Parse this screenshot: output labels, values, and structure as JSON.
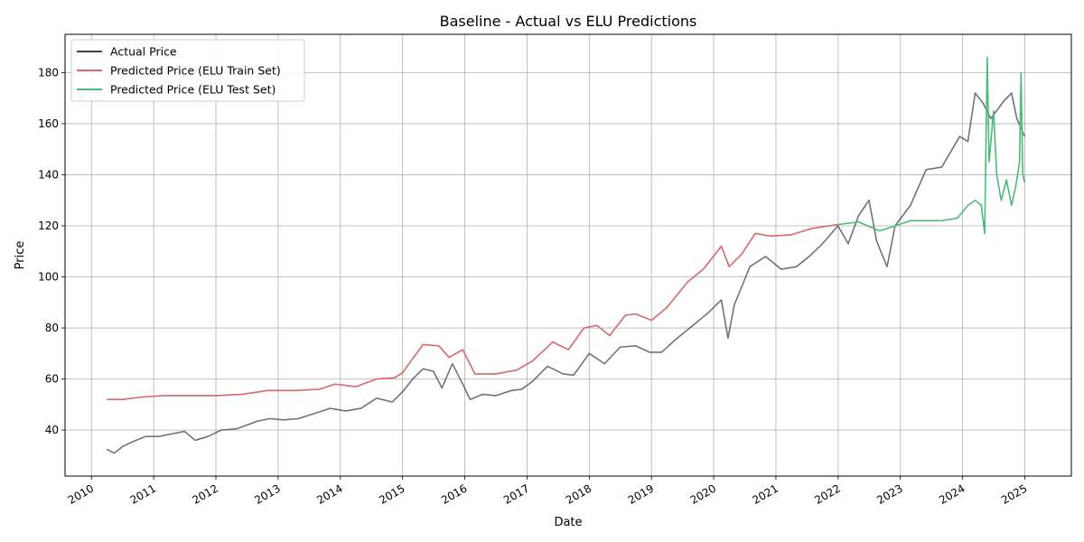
{
  "chart_data": {
    "type": "line",
    "title": "Baseline - Actual vs ELU Predictions",
    "xlabel": "Date",
    "ylabel": "Price",
    "xlim": [
      "2009-07-30",
      "2025-10-01"
    ],
    "ylim": [
      22,
      195
    ],
    "grid": true,
    "legend_position": "top-left",
    "x_ticks": [
      "2010",
      "2011",
      "2012",
      "2013",
      "2014",
      "2015",
      "2016",
      "2017",
      "2018",
      "2019",
      "2020",
      "2021",
      "2022",
      "2023",
      "2024",
      "2025"
    ],
    "y_ticks": [
      40,
      60,
      80,
      100,
      120,
      140,
      160,
      180
    ],
    "series": [
      {
        "name": "Actual Price",
        "color": "#444444",
        "points": [
          [
            "2010-04-01",
            32.5
          ],
          [
            "2010-05-15",
            31.0
          ],
          [
            "2010-07-01",
            33.5
          ],
          [
            "2010-09-01",
            35.5
          ],
          [
            "2010-11-15",
            37.5
          ],
          [
            "2011-02-01",
            37.5
          ],
          [
            "2011-04-15",
            38.5
          ],
          [
            "2011-07-01",
            39.5
          ],
          [
            "2011-09-01",
            36.0
          ],
          [
            "2011-11-15",
            37.5
          ],
          [
            "2012-02-01",
            40.0
          ],
          [
            "2012-05-01",
            40.5
          ],
          [
            "2012-09-01",
            43.5
          ],
          [
            "2012-11-15",
            44.5
          ],
          [
            "2013-02-01",
            44.0
          ],
          [
            "2013-05-01",
            44.5
          ],
          [
            "2013-08-01",
            46.5
          ],
          [
            "2013-11-01",
            48.5
          ],
          [
            "2014-02-01",
            47.5
          ],
          [
            "2014-05-01",
            48.5
          ],
          [
            "2014-08-01",
            52.5
          ],
          [
            "2014-11-01",
            51.0
          ],
          [
            "2015-01-01",
            55.0
          ],
          [
            "2015-03-01",
            60.0
          ],
          [
            "2015-05-01",
            64.0
          ],
          [
            "2015-07-01",
            63.0
          ],
          [
            "2015-08-20",
            56.5
          ],
          [
            "2015-10-20",
            66.0
          ],
          [
            "2015-12-20",
            58.0
          ],
          [
            "2016-02-01",
            52.0
          ],
          [
            "2016-04-15",
            54.0
          ],
          [
            "2016-07-01",
            53.5
          ],
          [
            "2016-10-01",
            55.5
          ],
          [
            "2016-12-01",
            56.0
          ],
          [
            "2017-02-01",
            59.0
          ],
          [
            "2017-05-01",
            65.0
          ],
          [
            "2017-08-01",
            62.0
          ],
          [
            "2017-10-01",
            61.5
          ],
          [
            "2018-01-01",
            70.0
          ],
          [
            "2018-04-01",
            66.0
          ],
          [
            "2018-07-01",
            72.5
          ],
          [
            "2018-10-01",
            73.0
          ],
          [
            "2018-12-20",
            70.5
          ],
          [
            "2019-03-01",
            70.5
          ],
          [
            "2019-06-01",
            76.0
          ],
          [
            "2019-09-01",
            81.0
          ],
          [
            "2019-12-01",
            86.0
          ],
          [
            "2020-02-15",
            91.0
          ],
          [
            "2020-03-25",
            76.0
          ],
          [
            "2020-05-01",
            89.0
          ],
          [
            "2020-08-01",
            104.0
          ],
          [
            "2020-11-01",
            108.0
          ],
          [
            "2021-02-01",
            103.0
          ],
          [
            "2021-05-01",
            104.0
          ],
          [
            "2021-07-15",
            108.0
          ],
          [
            "2021-10-01",
            113.0
          ],
          [
            "2021-12-31",
            120.0
          ],
          [
            "2022-03-01",
            113.0
          ],
          [
            "2022-05-01",
            124.0
          ],
          [
            "2022-07-01",
            130.0
          ],
          [
            "2022-08-15",
            114.0
          ],
          [
            "2022-10-15",
            104.0
          ],
          [
            "2022-12-01",
            120.0
          ],
          [
            "2023-03-01",
            128.0
          ],
          [
            "2023-06-01",
            142.0
          ],
          [
            "2023-09-01",
            143.0
          ],
          [
            "2023-11-01",
            150.0
          ],
          [
            "2023-12-15",
            155.0
          ],
          [
            "2024-02-01",
            153.0
          ],
          [
            "2024-03-15",
            172.0
          ],
          [
            "2024-05-01",
            168.0
          ],
          [
            "2024-06-15",
            162.0
          ],
          [
            "2024-09-01",
            169.0
          ],
          [
            "2024-10-15",
            172.0
          ],
          [
            "2024-11-15",
            162.0
          ],
          [
            "2024-12-31",
            155.0
          ]
        ]
      },
      {
        "name": "Predicted Price (ELU Train Set)",
        "color": "#d9676b",
        "points": [
          [
            "2010-04-01",
            52.0
          ],
          [
            "2010-07-01",
            52.0
          ],
          [
            "2010-11-01",
            53.0
          ],
          [
            "2011-03-01",
            53.5
          ],
          [
            "2011-08-01",
            53.5
          ],
          [
            "2012-01-01",
            53.5
          ],
          [
            "2012-06-01",
            54.0
          ],
          [
            "2012-11-01",
            55.5
          ],
          [
            "2013-04-01",
            55.5
          ],
          [
            "2013-09-01",
            56.0
          ],
          [
            "2013-12-01",
            58.0
          ],
          [
            "2014-04-01",
            57.0
          ],
          [
            "2014-08-01",
            60.0
          ],
          [
            "2014-11-15",
            60.5
          ],
          [
            "2015-01-01",
            62.5
          ],
          [
            "2015-05-01",
            73.5
          ],
          [
            "2015-08-01",
            73.0
          ],
          [
            "2015-10-01",
            68.5
          ],
          [
            "2015-12-20",
            71.5
          ],
          [
            "2016-03-01",
            62.0
          ],
          [
            "2016-07-01",
            62.0
          ],
          [
            "2016-11-01",
            63.5
          ],
          [
            "2017-02-01",
            67.0
          ],
          [
            "2017-06-01",
            74.5
          ],
          [
            "2017-09-01",
            71.5
          ],
          [
            "2017-12-01",
            80.0
          ],
          [
            "2018-02-15",
            81.0
          ],
          [
            "2018-05-01",
            77.0
          ],
          [
            "2018-08-01",
            85.0
          ],
          [
            "2018-10-01",
            85.5
          ],
          [
            "2019-01-01",
            83.0
          ],
          [
            "2019-04-01",
            88.0
          ],
          [
            "2019-08-01",
            98.0
          ],
          [
            "2019-11-01",
            103.0
          ],
          [
            "2020-02-15",
            112.0
          ],
          [
            "2020-04-01",
            104.0
          ],
          [
            "2020-06-15",
            109.0
          ],
          [
            "2020-09-01",
            117.0
          ],
          [
            "2020-12-01",
            116.0
          ],
          [
            "2021-04-01",
            116.5
          ],
          [
            "2021-08-01",
            119.0
          ],
          [
            "2021-12-31",
            120.5
          ]
        ]
      },
      {
        "name": "Predicted Price (ELU Test Set)",
        "color": "#4cba7a",
        "points": [
          [
            "2022-01-01",
            120.5
          ],
          [
            "2022-05-01",
            121.5
          ],
          [
            "2022-09-01",
            118.0
          ],
          [
            "2022-12-01",
            120.0
          ],
          [
            "2023-03-01",
            122.0
          ],
          [
            "2023-06-01",
            122.0
          ],
          [
            "2023-09-01",
            122.0
          ],
          [
            "2023-12-01",
            123.0
          ],
          [
            "2024-02-01",
            128.0
          ],
          [
            "2024-03-15",
            130.0
          ],
          [
            "2024-04-20",
            128.0
          ],
          [
            "2024-05-10",
            117.0
          ],
          [
            "2024-05-25",
            186.0
          ],
          [
            "2024-06-05",
            145.0
          ],
          [
            "2024-07-01",
            165.0
          ],
          [
            "2024-07-20",
            140.0
          ],
          [
            "2024-08-15",
            130.0
          ],
          [
            "2024-09-15",
            138.0
          ],
          [
            "2024-10-15",
            128.0
          ],
          [
            "2024-11-10",
            136.0
          ],
          [
            "2024-12-01",
            145.0
          ],
          [
            "2024-12-10",
            180.0
          ],
          [
            "2024-12-20",
            140.0
          ],
          [
            "2024-12-31",
            137.0
          ]
        ]
      }
    ]
  }
}
